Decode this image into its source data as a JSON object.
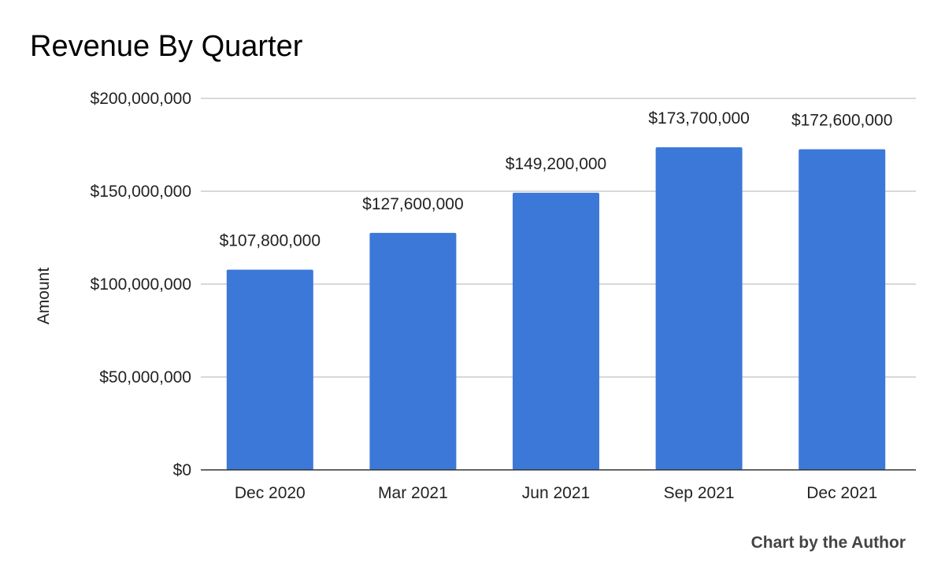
{
  "title": "Revenue By Quarter",
  "credit": "Chart by the Author",
  "colors": {
    "bar": "#3c78d8",
    "grid": "#cccccc",
    "axis": "#333333",
    "text": "#222222"
  },
  "chart_data": {
    "type": "bar",
    "title": "Revenue By Quarter",
    "xlabel": "",
    "ylabel": "Amount",
    "categories": [
      "Dec 2020",
      "Mar 2021",
      "Jun 2021",
      "Sep 2021",
      "Dec 2021"
    ],
    "values": [
      107800000,
      127600000,
      149200000,
      173700000,
      172600000
    ],
    "value_labels": [
      "$107,800,000",
      "$127,600,000",
      "$149,200,000",
      "$173,700,000",
      "$172,600,000"
    ],
    "ylim": [
      0,
      200000000
    ],
    "yticks": [
      0,
      50000000,
      100000000,
      150000000,
      200000000
    ],
    "ytick_labels": [
      "$0",
      "$50,000,000",
      "$100,000,000",
      "$150,000,000",
      "$200,000,000"
    ],
    "grid": true,
    "legend": "none"
  }
}
